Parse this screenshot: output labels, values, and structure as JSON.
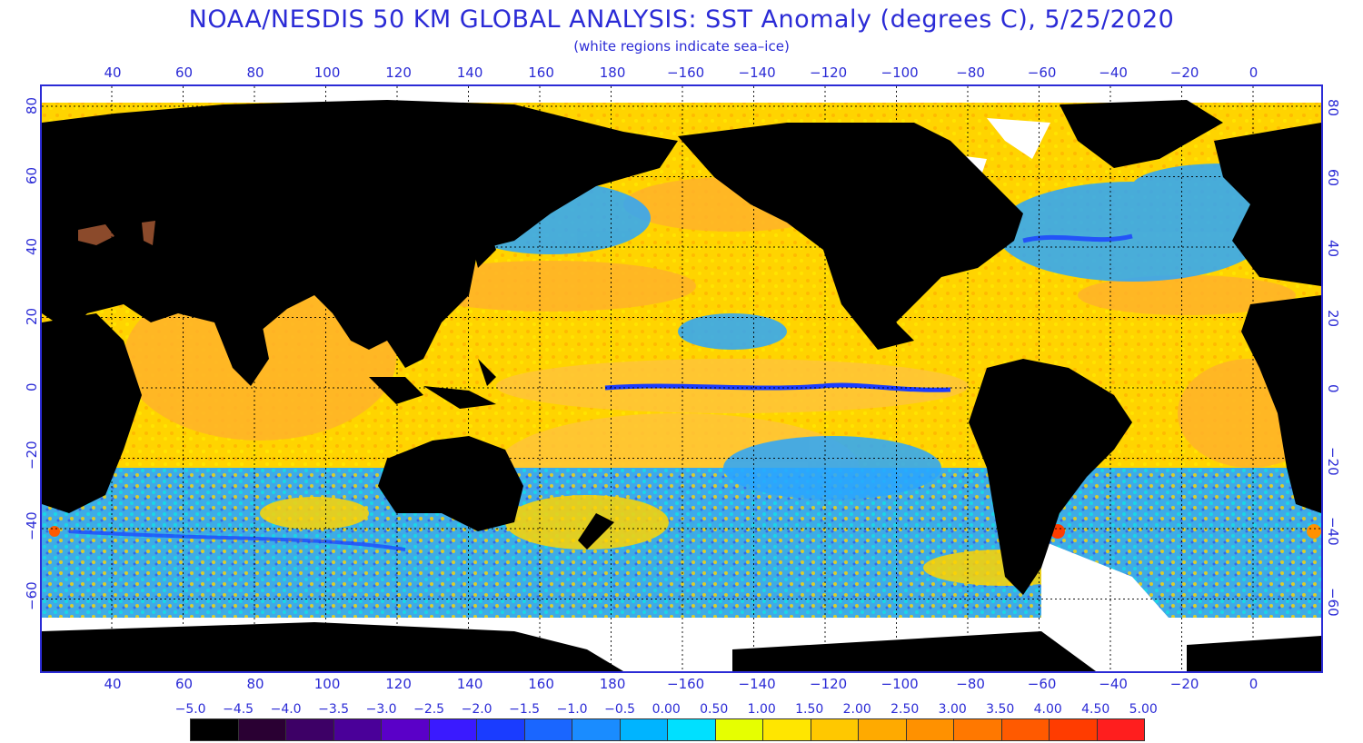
{
  "map": {
    "title": "NOAA/NESDIS 50 KM GLOBAL ANALYSIS: SST Anomaly (degrees C), 5/25/2020",
    "subtitle": "(white regions indicate sea–ice)",
    "lon_ticks": [
      "40",
      "60",
      "80",
      "100",
      "120",
      "140",
      "160",
      "180",
      "−160",
      "−140",
      "−120",
      "−100",
      "−80",
      "−60",
      "−40",
      "−20",
      "0"
    ],
    "lat_ticks": [
      "80",
      "60",
      "40",
      "20",
      "0",
      "−20",
      "−40",
      "−60"
    ],
    "colors": {
      "land": "#000000",
      "sea_ice": "#ffffff",
      "frame": "#2b2bd6",
      "text": "#2b2bd6",
      "warm": "#ffd400",
      "warmer": "#ffaa20",
      "cool": "#1aa8ff",
      "cold": "#1a3cff",
      "neutral": "#ffee00",
      "dry_land": "#8b4a2b"
    }
  },
  "colorbar": {
    "labels": [
      "−5.0",
      "−4.5",
      "−4.0",
      "−3.5",
      "−3.0",
      "−2.5",
      "−2.0",
      "−1.5",
      "−1.0",
      "−0.5",
      "0.00",
      "0.50",
      "1.00",
      "1.50",
      "2.00",
      "2.50",
      "3.00",
      "3.50",
      "4.00",
      "4.50",
      "5.00"
    ],
    "colors": [
      "#000000",
      "#2a0033",
      "#3d0066",
      "#4a0099",
      "#5a00c8",
      "#3a1aff",
      "#1a3cff",
      "#1a66ff",
      "#1a8cff",
      "#00b4ff",
      "#00e0ff",
      "#e6ff00",
      "#ffe600",
      "#ffc800",
      "#ffaa00",
      "#ff9100",
      "#ff7800",
      "#ff5a00",
      "#ff3c00",
      "#ff1e1e"
    ]
  }
}
